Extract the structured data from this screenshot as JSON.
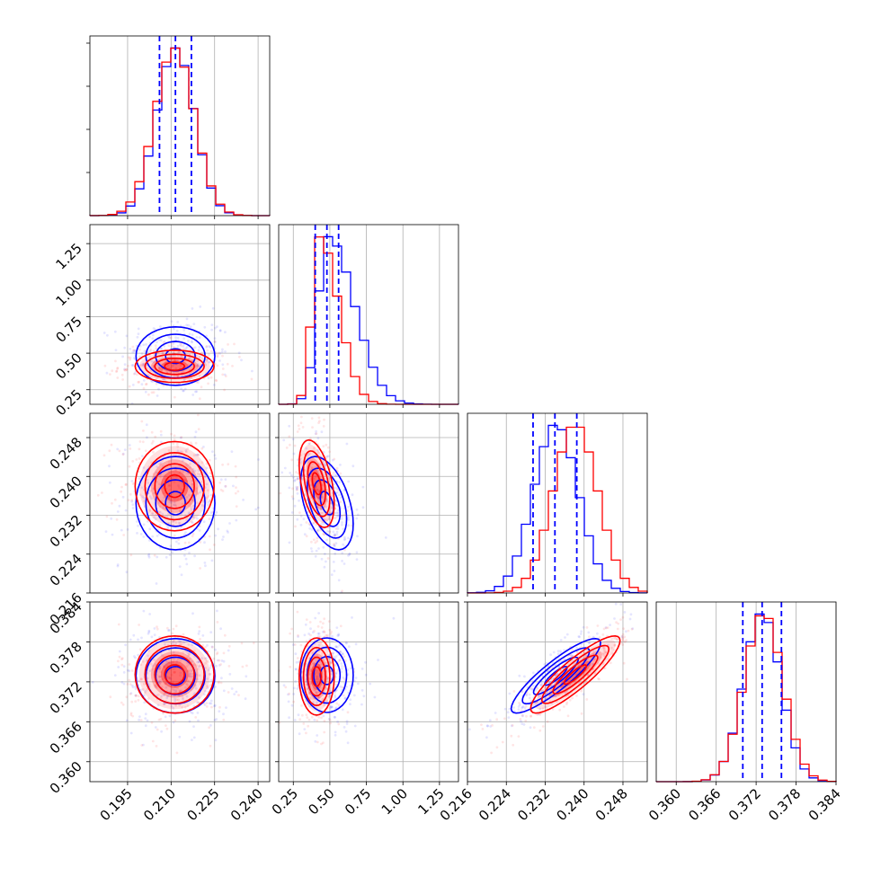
{
  "chart_data": {
    "type": "corner",
    "parameters": [
      "",
      "",
      "",
      ""
    ],
    "series": [
      {
        "name": "",
        "color": "#0000ff"
      },
      {
        "name": "",
        "color": "#ff0000"
      }
    ],
    "grid": true,
    "quantile_line_color": "#0000ff",
    "axes": [
      {
        "range": [
          0.182,
          0.244
        ],
        "ticks": [
          0.195,
          0.21,
          0.225,
          0.24
        ],
        "tick_labels": [
          "0.195",
          "0.210",
          "0.225",
          "0.240"
        ]
      },
      {
        "range": [
          0.15,
          1.38
        ],
        "ticks": [
          0.25,
          0.5,
          0.75,
          1.0,
          1.25
        ],
        "tick_labels": [
          "0.25",
          "0.50",
          "0.75",
          "1.00",
          "1.25"
        ]
      },
      {
        "range": [
          0.216,
          0.253
        ],
        "ticks": [
          0.216,
          0.224,
          0.232,
          0.24,
          0.248
        ],
        "tick_labels": [
          "0.216",
          "0.224",
          "0.232",
          "0.240",
          "0.248"
        ]
      },
      {
        "range": [
          0.357,
          0.384
        ],
        "ticks": [
          0.36,
          0.366,
          0.372,
          0.378,
          0.384
        ],
        "tick_labels": [
          "0.360",
          "0.366",
          "0.372",
          "0.378",
          "0.384"
        ]
      }
    ],
    "marginals": [
      {
        "param_index": 0,
        "blue_quantiles": [
          0.206,
          0.2115,
          0.217
        ],
        "blue": {
          "mean": 0.2115,
          "sd": 0.0065
        },
        "red": {
          "mean": 0.2112,
          "sd": 0.0068
        }
      },
      {
        "param_index": 1,
        "blue_quantiles": [
          0.4,
          0.48,
          0.56
        ],
        "blue": {
          "mean": 0.49,
          "sd": 0.11,
          "skew": "right"
        },
        "red": {
          "mean": 0.43,
          "sd": 0.08,
          "skew": "right"
        }
      },
      {
        "param_index": 2,
        "blue_quantiles": [
          0.2295,
          0.234,
          0.2385
        ],
        "blue": {
          "mean": 0.2342,
          "sd": 0.0046
        },
        "red": {
          "mean": 0.2382,
          "sd": 0.0046
        }
      },
      {
        "param_index": 3,
        "blue_quantiles": [
          0.37,
          0.3729,
          0.3758
        ],
        "blue": {
          "mean": 0.3729,
          "sd": 0.0028
        },
        "red": {
          "mean": 0.3731,
          "sd": 0.0029
        }
      }
    ],
    "joints": [
      {
        "x_index": 0,
        "y_index": 1,
        "blue": {
          "mx": 0.2115,
          "my": 0.48,
          "sx": 0.0068,
          "sy": 0.1,
          "rho": 0.0
        },
        "red": {
          "mx": 0.2112,
          "my": 0.41,
          "sx": 0.0068,
          "sy": 0.055,
          "rho": 0.0
        }
      },
      {
        "x_index": 0,
        "y_index": 2,
        "blue": {
          "mx": 0.2115,
          "my": 0.2345,
          "sx": 0.0068,
          "sy": 0.0048,
          "rho": 0.0
        },
        "red": {
          "mx": 0.2112,
          "my": 0.238,
          "sx": 0.0068,
          "sy": 0.0046,
          "rho": 0.0
        }
      },
      {
        "x_index": 1,
        "y_index": 2,
        "blue": {
          "mx": 0.48,
          "my": 0.2345,
          "sx": 0.09,
          "sy": 0.0048,
          "rho": -0.45
        },
        "red": {
          "mx": 0.41,
          "my": 0.2385,
          "sx": 0.06,
          "sy": 0.0045,
          "rho": -0.45
        }
      },
      {
        "x_index": 0,
        "y_index": 3,
        "blue": {
          "mx": 0.2115,
          "my": 0.3729,
          "sx": 0.0068,
          "sy": 0.0028,
          "rho": 0.0
        },
        "red": {
          "mx": 0.2112,
          "my": 0.3731,
          "sx": 0.0068,
          "sy": 0.0029,
          "rho": 0.0
        }
      },
      {
        "x_index": 1,
        "y_index": 3,
        "blue": {
          "mx": 0.48,
          "my": 0.373,
          "sx": 0.09,
          "sy": 0.0028,
          "rho": 0.0
        },
        "red": {
          "mx": 0.41,
          "my": 0.3728,
          "sx": 0.06,
          "sy": 0.0029,
          "rho": 0.0
        }
      },
      {
        "x_index": 2,
        "y_index": 3,
        "blue": {
          "mx": 0.2342,
          "my": 0.3729,
          "sx": 0.0046,
          "sy": 0.0028,
          "rho": 0.88
        },
        "red": {
          "mx": 0.2382,
          "my": 0.3731,
          "sx": 0.0046,
          "sy": 0.0029,
          "rho": 0.88
        }
      }
    ]
  }
}
